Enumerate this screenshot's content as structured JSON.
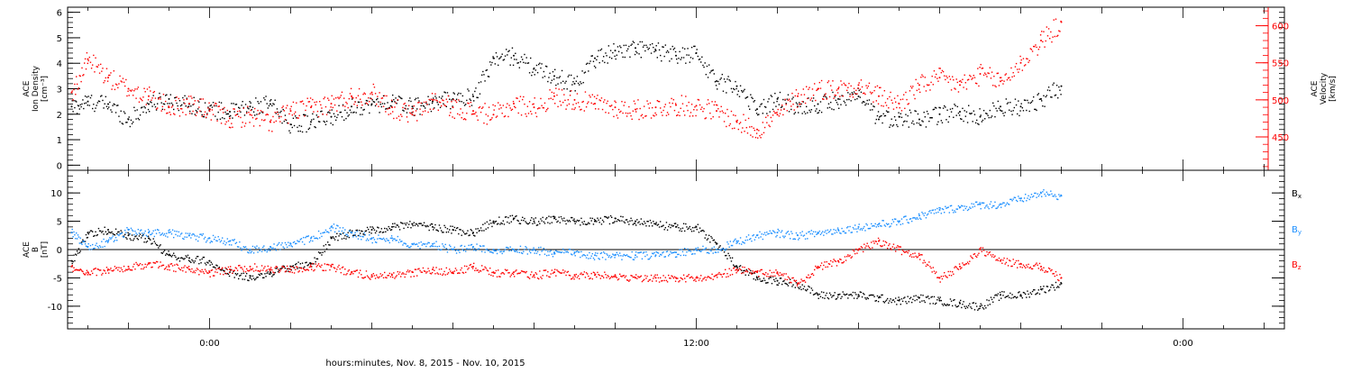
{
  "xlabel": "hours:minutes, Nov.  8, 2015 - Nov. 10, 2015",
  "x_ticks": [
    {
      "label": "0:00",
      "hour": 0
    },
    {
      "label": "12:00",
      "hour": 12
    },
    {
      "label": "0:00",
      "hour": 24
    }
  ],
  "colors": {
    "black": "#000000",
    "red": "#ff0000",
    "blue": "#1e90ff"
  },
  "chart_data": [
    {
      "type": "scatter",
      "xrange_hours": [
        -3.5,
        26.5
      ],
      "data_end_hour": 21.1,
      "left_axis": {
        "label_lines": [
          "ACE",
          "Ion Density",
          "[cm⁻³]"
        ],
        "ylim": [
          -0.2,
          6.2
        ],
        "ticks": [
          0,
          1,
          2,
          3,
          4,
          5,
          6
        ],
        "tick_labels": [
          "0",
          "1",
          "2",
          "3",
          "4",
          "5",
          "6"
        ]
      },
      "right_axis": {
        "label_lines": [
          "ACE",
          "Velocity",
          "[km/s]"
        ],
        "ylim": [
          405,
          625
        ],
        "ticks": [
          450,
          500,
          550,
          600
        ],
        "tick_labels": [
          "450",
          "500",
          "550",
          "600"
        ]
      },
      "series": [
        {
          "axis": "left",
          "color": "black",
          "points": [
            [
              -3.4,
              2.3
            ],
            [
              -3,
              2.5
            ],
            [
              -2.5,
              2.4
            ],
            [
              -2,
              1.8
            ],
            [
              -1.5,
              2.4
            ],
            [
              -1,
              2.6
            ],
            [
              -0.5,
              2.4
            ],
            [
              0,
              2.2
            ],
            [
              0.5,
              2.1
            ],
            [
              1,
              2.3
            ],
            [
              1.5,
              2.4
            ],
            [
              2,
              1.6
            ],
            [
              2.5,
              1.7
            ],
            [
              3,
              1.9
            ],
            [
              3.5,
              2.3
            ],
            [
              4,
              2.4
            ],
            [
              4.5,
              2.5
            ],
            [
              5,
              2.3
            ],
            [
              5.5,
              2.5
            ],
            [
              6,
              2.6
            ],
            [
              6.5,
              2.7
            ],
            [
              7,
              4.2
            ],
            [
              7.5,
              4.3
            ],
            [
              8,
              3.8
            ],
            [
              8.5,
              3.5
            ],
            [
              9,
              3.2
            ],
            [
              9.5,
              4.2
            ],
            [
              10,
              4.5
            ],
            [
              10.5,
              4.6
            ],
            [
              11,
              4.5
            ],
            [
              11.5,
              4.3
            ],
            [
              12,
              4.4
            ],
            [
              12.5,
              3.3
            ],
            [
              13,
              3.1
            ],
            [
              13.5,
              2.2
            ],
            [
              14,
              2.6
            ],
            [
              14.5,
              2.3
            ],
            [
              15,
              2.4
            ],
            [
              15.5,
              2.6
            ],
            [
              16,
              2.7
            ],
            [
              16.5,
              1.8
            ],
            [
              17,
              1.9
            ],
            [
              17.5,
              1.8
            ],
            [
              18,
              2
            ],
            [
              18.5,
              2.1
            ],
            [
              19,
              1.9
            ],
            [
              19.5,
              2.3
            ],
            [
              20,
              2.3
            ],
            [
              20.5,
              2.6
            ],
            [
              21,
              3.1
            ]
          ]
        },
        {
          "axis": "right",
          "color": "red",
          "points": [
            [
              -3.4,
              510
            ],
            [
              -3,
              555
            ],
            [
              -2.5,
              530
            ],
            [
              -2,
              515
            ],
            [
              -1.5,
              505
            ],
            [
              -1,
              490
            ],
            [
              -0.5,
              495
            ],
            [
              0,
              485
            ],
            [
              0.5,
              475
            ],
            [
              1,
              480
            ],
            [
              1.5,
              470
            ],
            [
              2,
              485
            ],
            [
              2.5,
              490
            ],
            [
              3,
              495
            ],
            [
              3.5,
              505
            ],
            [
              4,
              510
            ],
            [
              4.5,
              490
            ],
            [
              5,
              480
            ],
            [
              5.5,
              500
            ],
            [
              6,
              490
            ],
            [
              6.5,
              485
            ],
            [
              7,
              480
            ],
            [
              7.5,
              495
            ],
            [
              8,
              490
            ],
            [
              8.5,
              505
            ],
            [
              9,
              500
            ],
            [
              9.5,
              495
            ],
            [
              10,
              490
            ],
            [
              10.5,
              487
            ],
            [
              11,
              490
            ],
            [
              11.5,
              493
            ],
            [
              12,
              492
            ],
            [
              12.5,
              485
            ],
            [
              13,
              470
            ],
            [
              13.5,
              460
            ],
            [
              14,
              480
            ],
            [
              14.5,
              505
            ],
            [
              15,
              515
            ],
            [
              15.5,
              515
            ],
            [
              16,
              520
            ],
            [
              16.5,
              505
            ],
            [
              17,
              495
            ],
            [
              17.5,
              520
            ],
            [
              18,
              530
            ],
            [
              18.5,
              520
            ],
            [
              19,
              535
            ],
            [
              19.5,
              525
            ],
            [
              20,
              550
            ],
            [
              20.5,
              580
            ],
            [
              21,
              605
            ]
          ]
        }
      ]
    },
    {
      "type": "scatter",
      "xrange_hours": [
        -3.5,
        26.5
      ],
      "data_end_hour": 21.1,
      "zero_line": true,
      "left_axis": {
        "label_lines": [
          "ACE",
          "B",
          "[nT]"
        ],
        "ylim": [
          -14,
          14
        ],
        "ticks": [
          -10,
          -5,
          0,
          5,
          10
        ],
        "tick_labels": [
          "-10",
          "-5",
          "0",
          "5",
          "10"
        ]
      },
      "legend": [
        {
          "label": "Bx",
          "base": "B",
          "sub": "x",
          "color": "black"
        },
        {
          "label": "By",
          "base": "B",
          "sub": "y",
          "color": "blue"
        },
        {
          "label": "Bz",
          "base": "B",
          "sub": "z",
          "color": "red"
        }
      ],
      "series": [
        {
          "name": "Bx",
          "color": "black",
          "points": [
            [
              -3.4,
              -2
            ],
            [
              -3,
              3
            ],
            [
              -2.5,
              3.5
            ],
            [
              -2,
              2.5
            ],
            [
              -1.5,
              2
            ],
            [
              -1,
              -1
            ],
            [
              -0.5,
              -1.5
            ],
            [
              0,
              -2
            ],
            [
              0.5,
              -4
            ],
            [
              1,
              -5
            ],
            [
              1.5,
              -4
            ],
            [
              2,
              -3
            ],
            [
              2.5,
              -2.5
            ],
            [
              3,
              2
            ],
            [
              3.5,
              3
            ],
            [
              4,
              3.5
            ],
            [
              4.5,
              4
            ],
            [
              5,
              4.5
            ],
            [
              5.5,
              4
            ],
            [
              6,
              3.5
            ],
            [
              6.5,
              3
            ],
            [
              7,
              5
            ],
            [
              7.5,
              5.5
            ],
            [
              8,
              5
            ],
            [
              8.5,
              5.5
            ],
            [
              9,
              5
            ],
            [
              9.5,
              5
            ],
            [
              10,
              5.5
            ],
            [
              10.5,
              5
            ],
            [
              11,
              4.5
            ],
            [
              11.5,
              4
            ],
            [
              12,
              4
            ],
            [
              12.5,
              1
            ],
            [
              13,
              -3
            ],
            [
              13.5,
              -5
            ],
            [
              14,
              -5.5
            ],
            [
              14.5,
              -6
            ],
            [
              15,
              -8
            ],
            [
              15.5,
              -8
            ],
            [
              16,
              -8
            ],
            [
              16.5,
              -8.5
            ],
            [
              17,
              -9
            ],
            [
              17.5,
              -8.5
            ],
            [
              18,
              -9
            ],
            [
              18.5,
              -9.5
            ],
            [
              19,
              -10
            ],
            [
              19.5,
              -8
            ],
            [
              20,
              -8
            ],
            [
              20.5,
              -7
            ],
            [
              21,
              -6
            ]
          ]
        },
        {
          "name": "By",
          "color": "blue",
          "points": [
            [
              -3.4,
              3
            ],
            [
              -3,
              0.5
            ],
            [
              -2.5,
              1.5
            ],
            [
              -2,
              3.5
            ],
            [
              -1.5,
              3
            ],
            [
              -1,
              3
            ],
            [
              -0.5,
              2.5
            ],
            [
              0,
              2
            ],
            [
              0.5,
              1.5
            ],
            [
              1,
              0
            ],
            [
              1.5,
              0.5
            ],
            [
              2,
              1
            ],
            [
              2.5,
              2
            ],
            [
              3,
              4
            ],
            [
              3.5,
              3
            ],
            [
              4,
              2
            ],
            [
              4.5,
              2
            ],
            [
              5,
              1
            ],
            [
              5.5,
              1
            ],
            [
              6,
              0
            ],
            [
              6.5,
              0.5
            ],
            [
              7,
              0
            ],
            [
              7.5,
              0
            ],
            [
              8,
              0
            ],
            [
              8.5,
              -0.5
            ],
            [
              9,
              -0.5
            ],
            [
              9.5,
              -1
            ],
            [
              10,
              -1
            ],
            [
              10.5,
              -1
            ],
            [
              11,
              -1
            ],
            [
              11.5,
              -0.5
            ],
            [
              12,
              0
            ],
            [
              12.5,
              0
            ],
            [
              13,
              1.5
            ],
            [
              13.5,
              2.5
            ],
            [
              14,
              3
            ],
            [
              14.5,
              2.5
            ],
            [
              15,
              3
            ],
            [
              15.5,
              3.5
            ],
            [
              16,
              4
            ],
            [
              16.5,
              4.5
            ],
            [
              17,
              5
            ],
            [
              17.5,
              6
            ],
            [
              18,
              7
            ],
            [
              18.5,
              7.5
            ],
            [
              19,
              8
            ],
            [
              19.5,
              8
            ],
            [
              20,
              9
            ],
            [
              20.5,
              10
            ],
            [
              21,
              9.5
            ]
          ]
        },
        {
          "name": "Bz",
          "color": "red",
          "points": [
            [
              -3.4,
              -3
            ],
            [
              -3,
              -4
            ],
            [
              -2.5,
              -3.5
            ],
            [
              -2,
              -3
            ],
            [
              -1.5,
              -2.5
            ],
            [
              -1,
              -3
            ],
            [
              -0.5,
              -3.5
            ],
            [
              0,
              -4
            ],
            [
              0.5,
              -3.5
            ],
            [
              1,
              -3
            ],
            [
              1.5,
              -3.5
            ],
            [
              2,
              -3.5
            ],
            [
              2.5,
              -3
            ],
            [
              3,
              -3
            ],
            [
              3.5,
              -4
            ],
            [
              4,
              -4.5
            ],
            [
              4.5,
              -4.5
            ],
            [
              5,
              -4
            ],
            [
              5.5,
              -3.5
            ],
            [
              6,
              -4
            ],
            [
              6.5,
              -3
            ],
            [
              7,
              -4
            ],
            [
              7.5,
              -4
            ],
            [
              8,
              -4.5
            ],
            [
              8.5,
              -4
            ],
            [
              9,
              -4.5
            ],
            [
              9.5,
              -4.5
            ],
            [
              10,
              -4.5
            ],
            [
              10.5,
              -5
            ],
            [
              11,
              -5
            ],
            [
              11.5,
              -5
            ],
            [
              12,
              -5
            ],
            [
              12.5,
              -4.5
            ],
            [
              13,
              -3.5
            ],
            [
              13.5,
              -4
            ],
            [
              14,
              -4
            ],
            [
              14.5,
              -6
            ],
            [
              15,
              -3
            ],
            [
              15.5,
              -2
            ],
            [
              16,
              0
            ],
            [
              16.5,
              1.5
            ],
            [
              17,
              0
            ],
            [
              17.5,
              -1
            ],
            [
              18,
              -5
            ],
            [
              18.5,
              -3
            ],
            [
              19,
              0
            ],
            [
              19.5,
              -2
            ],
            [
              20,
              -2.5
            ],
            [
              20.5,
              -3
            ],
            [
              21,
              -5
            ]
          ]
        }
      ]
    }
  ]
}
